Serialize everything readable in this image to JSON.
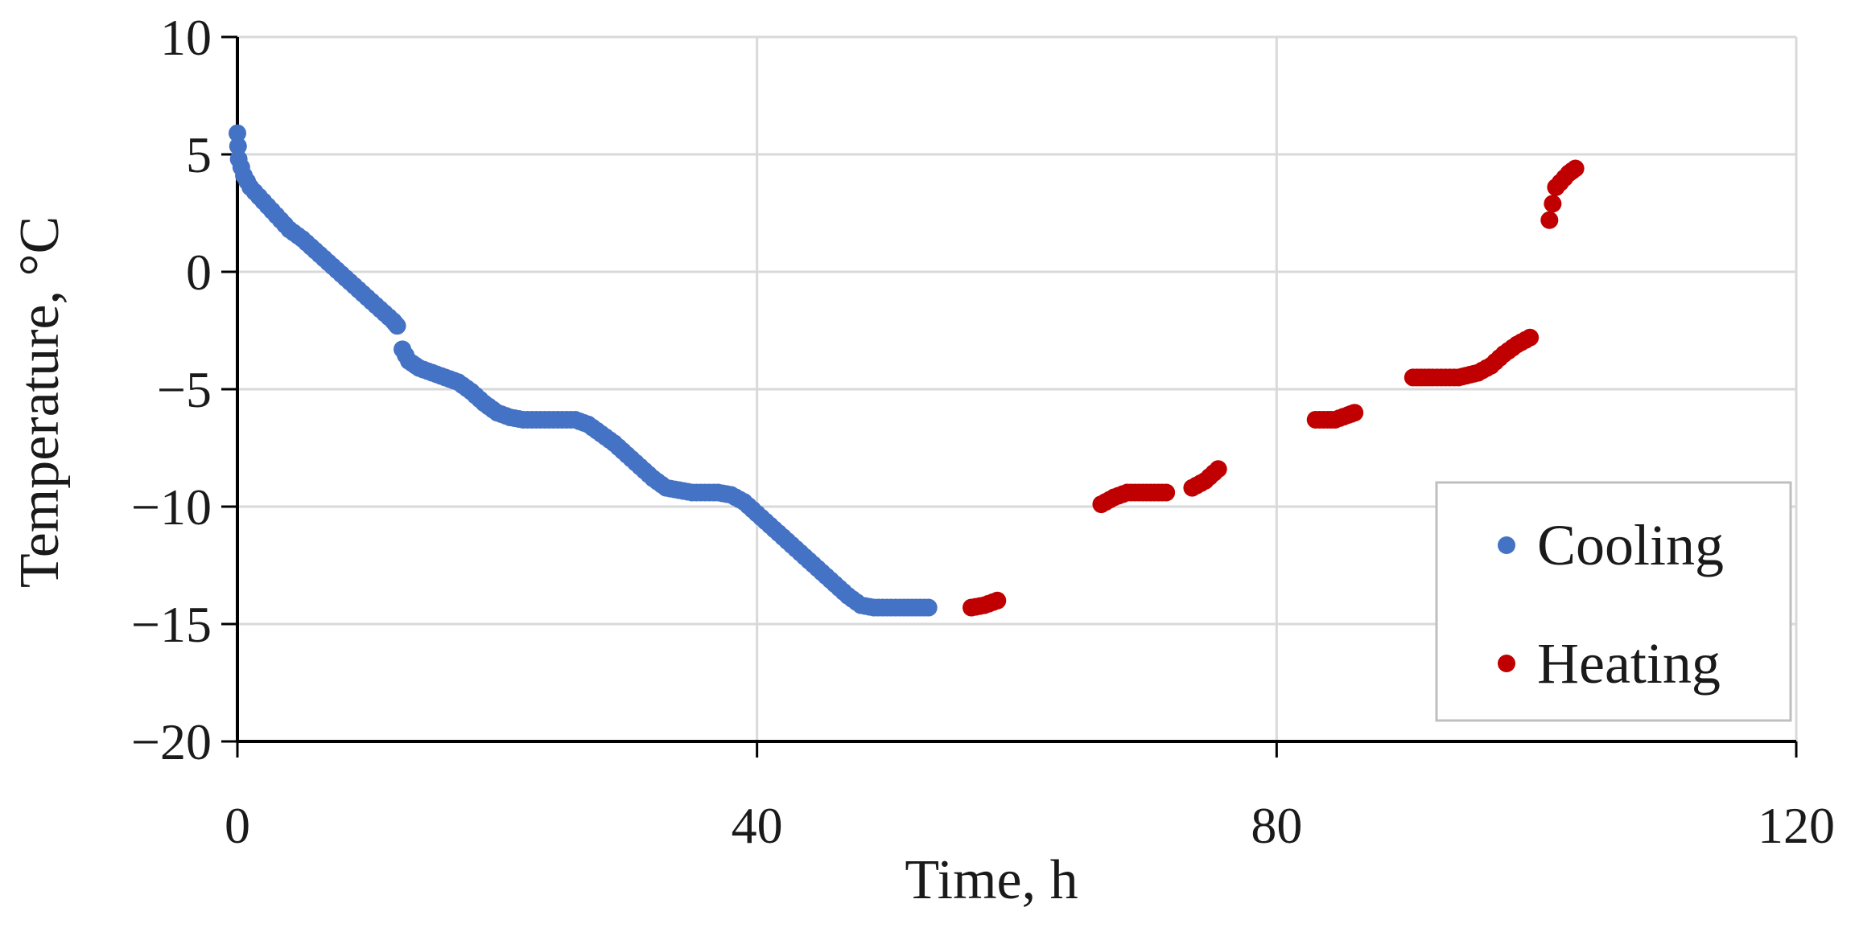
{
  "chart_data": {
    "type": "scatter",
    "title": "",
    "xlabel": "Time, h",
    "ylabel": "Temperature, °C",
    "xlim": [
      0,
      120
    ],
    "ylim": [
      -20,
      10
    ],
    "xticks": [
      0,
      40,
      80,
      120
    ],
    "yticks": [
      10,
      5,
      0,
      -5,
      -10,
      -15,
      -20
    ],
    "xtick_labels": [
      "0",
      "40",
      "80",
      "120"
    ],
    "ytick_labels": [
      "10",
      "5",
      "0",
      "−5",
      "−10",
      "−15",
      "−20"
    ],
    "grid": true,
    "legend_position": "right",
    "series": [
      {
        "name": "Cooling",
        "color": "#4472c4",
        "segments": [
          [
            [
              0,
              5.9
            ],
            [
              0.1,
              4.8
            ],
            [
              0.5,
              4.1
            ],
            [
              1,
              3.6
            ],
            [
              2,
              3.0
            ],
            [
              3,
              2.4
            ],
            [
              4,
              1.8
            ],
            [
              5,
              1.4
            ],
            [
              6,
              0.9
            ],
            [
              7,
              0.4
            ],
            [
              8,
              -0.1
            ],
            [
              9,
              -0.6
            ],
            [
              10,
              -1.1
            ],
            [
              11,
              -1.6
            ],
            [
              12,
              -2.1
            ],
            [
              12.3,
              -2.3
            ]
          ],
          [
            [
              12.7,
              -3.3
            ],
            [
              13.2,
              -3.8
            ],
            [
              14,
              -4.1
            ],
            [
              15,
              -4.3
            ],
            [
              16,
              -4.5
            ],
            [
              17,
              -4.7
            ],
            [
              18,
              -5.1
            ],
            [
              19,
              -5.6
            ],
            [
              20,
              -6.0
            ],
            [
              21,
              -6.2
            ],
            [
              22,
              -6.3
            ],
            [
              24,
              -6.3
            ],
            [
              26,
              -6.3
            ],
            [
              27,
              -6.5
            ],
            [
              28,
              -6.9
            ],
            [
              29,
              -7.3
            ],
            [
              30,
              -7.8
            ],
            [
              31,
              -8.3
            ],
            [
              32,
              -8.8
            ],
            [
              33,
              -9.2
            ],
            [
              34,
              -9.3
            ],
            [
              35,
              -9.4
            ],
            [
              37,
              -9.4
            ],
            [
              38,
              -9.5
            ],
            [
              39,
              -9.8
            ],
            [
              40,
              -10.3
            ],
            [
              41,
              -10.8
            ],
            [
              42,
              -11.3
            ],
            [
              43,
              -11.8
            ],
            [
              44,
              -12.3
            ],
            [
              45,
              -12.8
            ],
            [
              46,
              -13.3
            ],
            [
              47,
              -13.8
            ],
            [
              48,
              -14.2
            ],
            [
              49,
              -14.3
            ],
            [
              51,
              -14.3
            ],
            [
              53.2,
              -14.3
            ]
          ]
        ]
      },
      {
        "name": "Heating",
        "color": "#c00000",
        "segments": [
          [
            [
              56.5,
              -14.3
            ],
            [
              57.5,
              -14.2
            ],
            [
              58.5,
              -14.0
            ]
          ],
          [
            [
              66.5,
              -9.9
            ],
            [
              67.5,
              -9.6
            ],
            [
              68.5,
              -9.4
            ],
            [
              70,
              -9.4
            ],
            [
              71.5,
              -9.4
            ]
          ],
          [
            [
              73.5,
              -9.2
            ],
            [
              74.5,
              -8.9
            ],
            [
              75.5,
              -8.4
            ]
          ],
          [
            [
              83,
              -6.3
            ],
            [
              84.5,
              -6.3
            ],
            [
              85.5,
              -6.1
            ],
            [
              86,
              -6.0
            ]
          ],
          [
            [
              90.5,
              -4.5
            ],
            [
              92,
              -4.5
            ],
            [
              94,
              -4.5
            ],
            [
              95.5,
              -4.3
            ],
            [
              96.5,
              -4.0
            ],
            [
              97.5,
              -3.5
            ],
            [
              98.5,
              -3.1
            ],
            [
              99.5,
              -2.8
            ]
          ],
          [
            [
              101,
              2.2
            ],
            [
              101.5,
              3.6
            ],
            [
              102.5,
              4.2
            ],
            [
              103,
              4.4
            ]
          ]
        ]
      }
    ]
  }
}
